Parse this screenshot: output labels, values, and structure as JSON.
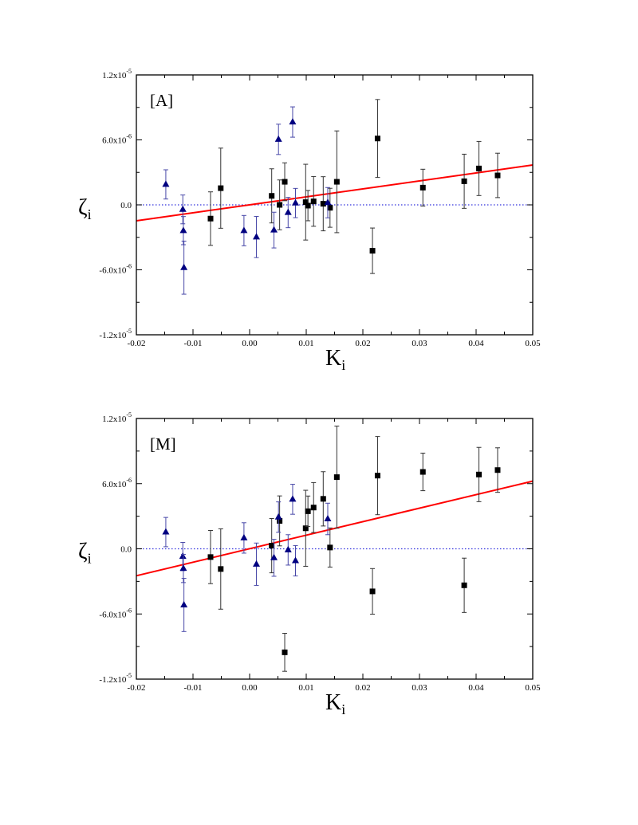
{
  "chart_data": [
    {
      "type": "scatter",
      "panel_label": "[A]",
      "xlabel": "K",
      "xlabel_sub": "i",
      "ylabel": "ζ",
      "ylabel_sub": "i",
      "xlim": [
        -0.02,
        0.05
      ],
      "ylim": [
        -1.2e-05,
        1.2e-05
      ],
      "x_ticks": [
        -0.02,
        -0.01,
        0.0,
        0.01,
        0.02,
        0.03,
        0.04,
        0.05
      ],
      "x_tick_labels": [
        "-0.02",
        "-0.01",
        "0.00",
        "0.01",
        "0.02",
        "0.03",
        "0.04",
        "0.05"
      ],
      "y_ticks": [
        1.2e-05,
        6e-06,
        0,
        -6e-06,
        -1.2e-05
      ],
      "y_tick_labels": [
        {
          "mant": "1.2x10",
          "exp": "-5"
        },
        {
          "mant": "6.0x10",
          "exp": "-6"
        },
        {
          "mant": "0.0",
          "exp": ""
        },
        {
          "mant": "-6.0x10",
          "exp": "-6"
        },
        {
          "mant": "-1.2x10",
          "exp": "-5"
        }
      ],
      "grid": false,
      "reference_line": {
        "y": 0,
        "style": "dotted",
        "color": "#3333dd"
      },
      "fit_line": {
        "color": "#ff0000",
        "x": [
          -0.02,
          0.05
        ],
        "y": [
          -1.47e-06,
          3.68e-06
        ]
      },
      "series": [
        {
          "marker": "square",
          "color": "#000000",
          "errcolor": "#333333",
          "x": [
            -0.0069,
            -0.0051,
            0.0039,
            0.0053,
            0.0062,
            0.0099,
            0.0103,
            0.0113,
            0.013,
            0.0142,
            0.0154,
            0.0226,
            0.0217,
            0.0306,
            0.0379,
            0.0405,
            0.0438
          ],
          "y": [
            -1.27e-06,
            1.54e-06,
            8.3e-07,
            0.0,
            2.13e-06,
            2.5e-07,
            -7e-08,
            3.2e-07,
            1e-07,
            -2.7e-07,
            2.13e-06,
            6.13e-06,
            -4.24e-06,
            1.59e-06,
            2.18e-06,
            3.36e-06,
            2.72e-06
          ],
          "yerr": [
            2.47e-06,
            3.7e-06,
            2.5e-06,
            2.3e-06,
            1.75e-06,
            3.5e-06,
            1.4e-06,
            2.3e-06,
            2.5e-06,
            1.8e-06,
            4.7e-06,
            3.6e-06,
            2.1e-06,
            1.7e-06,
            2.5e-06,
            2.5e-06,
            2.05e-06
          ]
        },
        {
          "marker": "triangle",
          "color": "#000080",
          "errcolor": "#4848a8",
          "x": [
            -0.0148,
            -0.0118,
            -0.0117,
            -0.0116,
            -0.001,
            0.0012,
            0.0043,
            0.0051,
            0.0076,
            0.0068,
            0.0081,
            0.0138
          ],
          "y": [
            1.89e-06,
            -4.2e-07,
            -2.38e-06,
            -5.8e-06,
            -2.38e-06,
            -2.97e-06,
            -2.33e-06,
            6.05e-06,
            7.65e-06,
            -7.1e-07,
            1.7e-07,
            2e-07
          ],
          "yerr": [
            1.35e-06,
            1.33e-06,
            1.3e-06,
            2.45e-06,
            1.4e-06,
            1.9e-06,
            1.65e-06,
            1.4e-06,
            1.4e-06,
            1.4e-06,
            1.35e-06,
            1.4e-06
          ]
        }
      ]
    },
    {
      "type": "scatter",
      "panel_label": "[M]",
      "xlabel": "K",
      "xlabel_sub": "i",
      "ylabel": "ζ",
      "ylabel_sub": "i",
      "xlim": [
        -0.02,
        0.05
      ],
      "ylim": [
        -1.2e-05,
        1.2e-05
      ],
      "x_ticks": [
        -0.02,
        -0.01,
        0.0,
        0.01,
        0.02,
        0.03,
        0.04,
        0.05
      ],
      "x_tick_labels": [
        "-0.02",
        "-0.01",
        "0.00",
        "0.01",
        "0.02",
        "0.03",
        "0.04",
        "0.05"
      ],
      "y_ticks": [
        1.2e-05,
        6e-06,
        0,
        -6e-06,
        -1.2e-05
      ],
      "y_tick_labels": [
        {
          "mant": "1.2x10",
          "exp": "-5"
        },
        {
          "mant": "6.0x10",
          "exp": "-6"
        },
        {
          "mant": "0.0",
          "exp": ""
        },
        {
          "mant": "-6.0x10",
          "exp": "-6"
        },
        {
          "mant": "-1.2x10",
          "exp": "-5"
        }
      ],
      "grid": false,
      "reference_line": {
        "y": 0,
        "style": "dotted",
        "color": "#3333dd"
      },
      "fit_line": {
        "color": "#ff0000",
        "x": [
          -0.02,
          0.05
        ],
        "y": [
          -2.48e-06,
          6.23e-06
        ]
      },
      "series": [
        {
          "marker": "square",
          "color": "#000000",
          "errcolor": "#333333",
          "x": [
            -0.0069,
            -0.0051,
            0.0039,
            0.0053,
            0.0062,
            0.0099,
            0.0103,
            0.0113,
            0.013,
            0.0142,
            0.0154,
            0.0226,
            0.0217,
            0.0306,
            0.0379,
            0.0405,
            0.0438
          ],
          "y": [
            -7.6e-07,
            -1.86e-06,
            2.9e-07,
            2.57e-06,
            -9.53e-06,
            1.89e-06,
            3.46e-06,
            3.8e-06,
            4.6e-06,
            1.2e-07,
            6.6e-06,
            6.74e-06,
            -3.92e-06,
            7.08e-06,
            -3.36e-06,
            6.84e-06,
            7.25e-06
          ],
          "yerr": [
            2.45e-06,
            3.7e-06,
            2.5e-06,
            2.3e-06,
            1.75e-06,
            3.5e-06,
            1.4e-06,
            2.3e-06,
            2.5e-06,
            1.8e-06,
            4.7e-06,
            3.6e-06,
            2.1e-06,
            1.73e-06,
            2.5e-06,
            2.5e-06,
            2.05e-06
          ]
        },
        {
          "marker": "triangle",
          "color": "#000080",
          "errcolor": "#4848a8",
          "x": [
            -0.0148,
            -0.0118,
            -0.0117,
            -0.0116,
            -0.001,
            0.0012,
            0.0043,
            0.0051,
            0.0076,
            0.0068,
            0.0081,
            0.0138
          ],
          "y": [
            1.54e-06,
            -7.1e-07,
            -1.81e-06,
            -5.17e-06,
            1e-06,
            -1.42e-06,
            -8.3e-07,
            2.92e-06,
            4.56e-06,
            -1e-07,
            -1.1e-06,
            2.75e-06
          ],
          "yerr": [
            1.35e-06,
            1.3e-06,
            1.3e-06,
            2.45e-06,
            1.4e-06,
            1.95e-06,
            1.7e-06,
            1.4e-06,
            1.38e-06,
            1.4e-06,
            1.4e-06,
            1.45e-06
          ]
        }
      ]
    }
  ]
}
